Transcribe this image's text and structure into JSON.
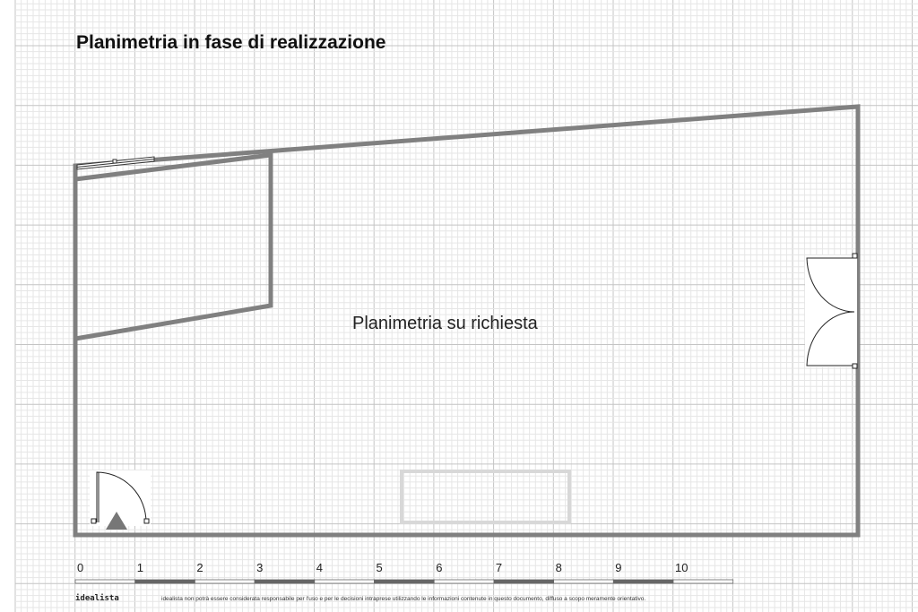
{
  "title": "Planimetria in fase di realizzazione",
  "center_label": "Planimetria su richiesta",
  "scale": {
    "ticks": [
      "0",
      "1",
      "2",
      "3",
      "4",
      "5",
      "6",
      "7",
      "8",
      "9",
      "10"
    ]
  },
  "footer": {
    "brand": "idealista",
    "disclaimer": "idealista non potrà essere considerata responsabile per l'uso e per le decisioni intraprese utilizzando le informazioni contenute in questo documento, diffuso a scopo meramente orientativo."
  },
  "colors": {
    "wall": "#808080",
    "grid_major": "#c4c4c4",
    "grid_minor": "#e6e6e6",
    "furniture": "#d8d8d8"
  }
}
